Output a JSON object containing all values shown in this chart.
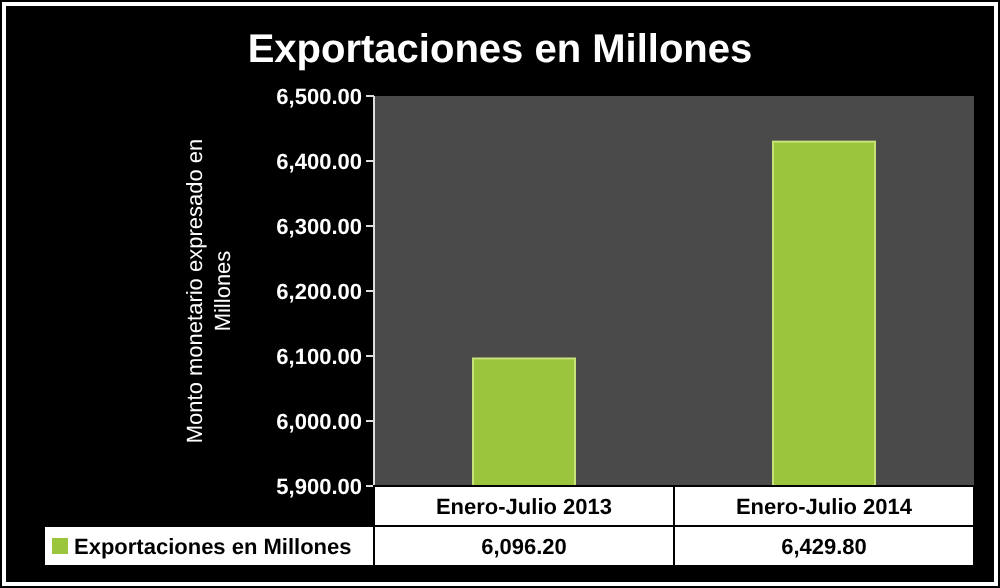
{
  "chart_data": {
    "type": "bar",
    "title": "Exportaciones en Millones",
    "ylabel": "Monto monetario expresado en Millones",
    "categories": [
      "Enero-Julio 2013",
      "Enero-Julio 2014"
    ],
    "series": [
      {
        "name": "Exportaciones en Millones",
        "color": "#9bc53d",
        "values": [
          6096.2,
          6429.8
        ]
      }
    ],
    "ylim": [
      5900,
      6500
    ],
    "yticks": [
      {
        "value": 5900,
        "label": "5,900.00"
      },
      {
        "value": 6000,
        "label": "6,000.00"
      },
      {
        "value": 6100,
        "label": "6,100.00"
      },
      {
        "value": 6200,
        "label": "6,200.00"
      },
      {
        "value": 6300,
        "label": "6,300.00"
      },
      {
        "value": 6400,
        "label": "6,400.00"
      },
      {
        "value": 6500,
        "label": "6,500.00"
      }
    ],
    "value_labels": [
      "6,096.20",
      "6,429.80"
    ],
    "legend": "bottom",
    "grid": false
  }
}
